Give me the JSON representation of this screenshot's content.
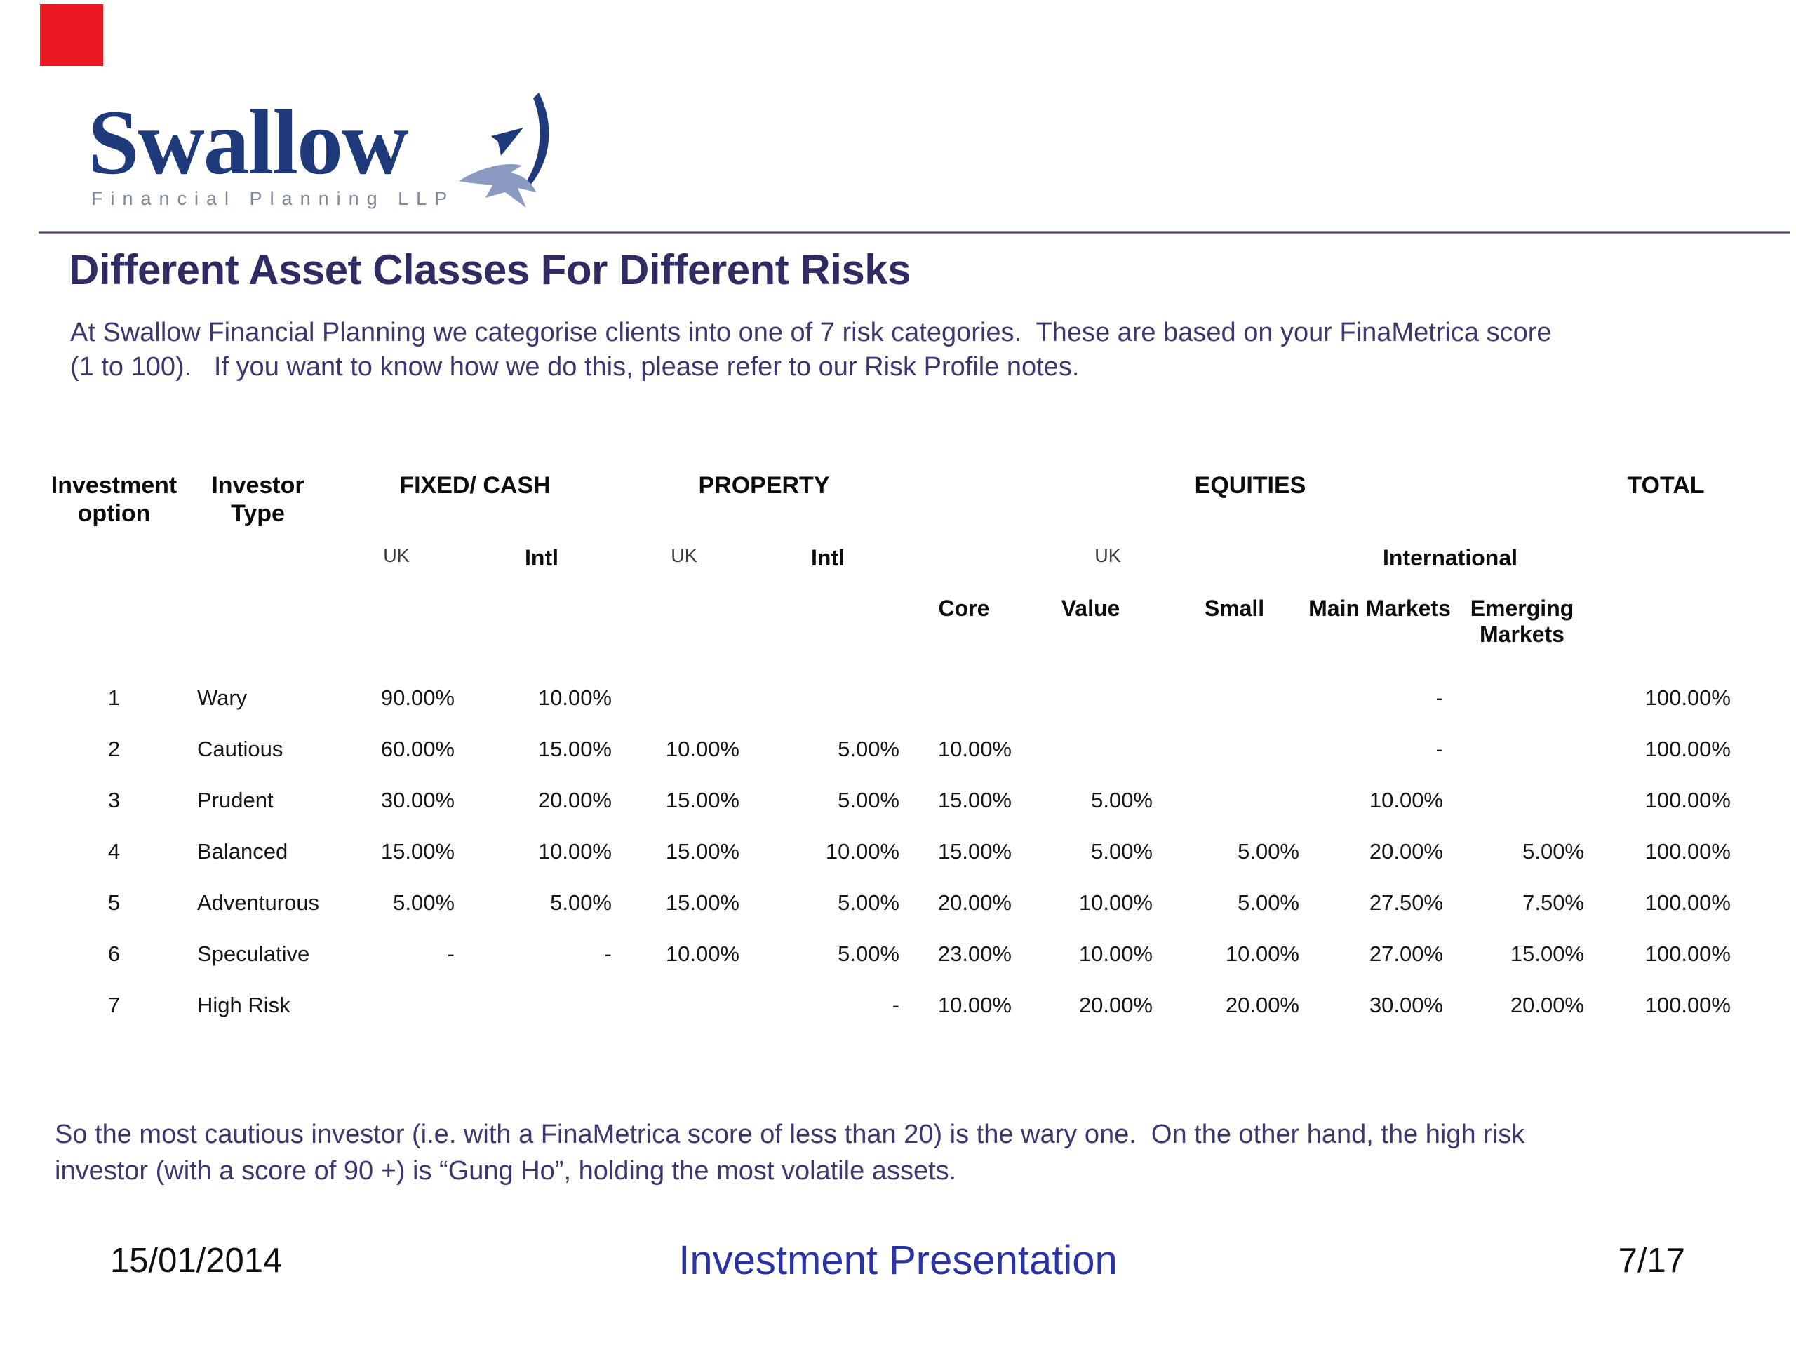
{
  "logo": {
    "brand": "Swallow",
    "tagline": "Financial Planning LLP"
  },
  "title": "Different Asset Classes For Different Risks",
  "intro": {
    "line1": "At Swallow Financial Planning we categorise clients into one of 7 risk categories.  These are based on your FinaMetrica score",
    "line2": "(1 to 100).   If you want to know how we do this, please refer to our Risk Profile notes."
  },
  "table": {
    "col_headers": {
      "option": "Investment option",
      "type": "Investor Type"
    },
    "groups": {
      "fixed": "FIXED/ CASH",
      "property": "PROPERTY",
      "equities": "EQUITIES",
      "total": "TOTAL"
    },
    "regions": {
      "fixed_uk": "UK",
      "fixed_intl": "Intl",
      "property_uk": "UK",
      "property_intl": "Intl",
      "equities_uk": "UK",
      "equities_intl": "International"
    },
    "equity_columns": {
      "core": "Core",
      "value": "Value",
      "small": "Small",
      "main": "Main Markets",
      "emerging": "Emerging Markets"
    },
    "rows": [
      {
        "option": "1",
        "type": "Wary",
        "cells": [
          "90.00%",
          "10.00%",
          "",
          "",
          "",
          "",
          "",
          "-",
          "",
          "100.00%"
        ]
      },
      {
        "option": "2",
        "type": "Cautious",
        "cells": [
          "60.00%",
          "15.00%",
          "10.00%",
          "5.00%",
          "10.00%",
          "",
          "",
          "-",
          "",
          "100.00%"
        ]
      },
      {
        "option": "3",
        "type": "Prudent",
        "cells": [
          "30.00%",
          "20.00%",
          "15.00%",
          "5.00%",
          "15.00%",
          "5.00%",
          "",
          "10.00%",
          "",
          "100.00%"
        ]
      },
      {
        "option": "4",
        "type": "Balanced",
        "cells": [
          "15.00%",
          "10.00%",
          "15.00%",
          "10.00%",
          "15.00%",
          "5.00%",
          "5.00%",
          "20.00%",
          "5.00%",
          "100.00%"
        ]
      },
      {
        "option": "5",
        "type": "Adventurous",
        "cells": [
          "5.00%",
          "5.00%",
          "15.00%",
          "5.00%",
          "20.00%",
          "10.00%",
          "5.00%",
          "27.50%",
          "7.50%",
          "100.00%"
        ]
      },
      {
        "option": "6",
        "type": "Speculative",
        "cells": [
          "-",
          "-",
          "10.00%",
          "5.00%",
          "23.00%",
          "10.00%",
          "10.00%",
          "27.00%",
          "15.00%",
          "100.00%"
        ]
      },
      {
        "option": "7",
        "type": "High Risk",
        "cells": [
          "",
          "",
          "",
          "-",
          "10.00%",
          "20.00%",
          "20.00%",
          "30.00%",
          "20.00%",
          "100.00%"
        ]
      }
    ]
  },
  "closing": {
    "line1": "So the most cautious investor (i.e. with a FinaMetrica score of less than 20) is the wary one.  On the other hand, the high risk",
    "line2": "investor (with a score of 90 +) is “Gung Ho”, holding the most volatile assets."
  },
  "footer": {
    "date": "15/01/2014",
    "title": "Investment Presentation",
    "page": "7/17"
  },
  "colors": {
    "logo_navy": "#1e3a7b",
    "tagline_gray": "#7e87a0",
    "title_navy": "#2e2c62",
    "body_navy": "#3a386e",
    "footer_blue": "#2a33a6",
    "rule_pink": "#d9a9b4",
    "rule_core": "#4a4470",
    "marker_red": "#e8191f",
    "bird_light": "#8b9ac0"
  }
}
